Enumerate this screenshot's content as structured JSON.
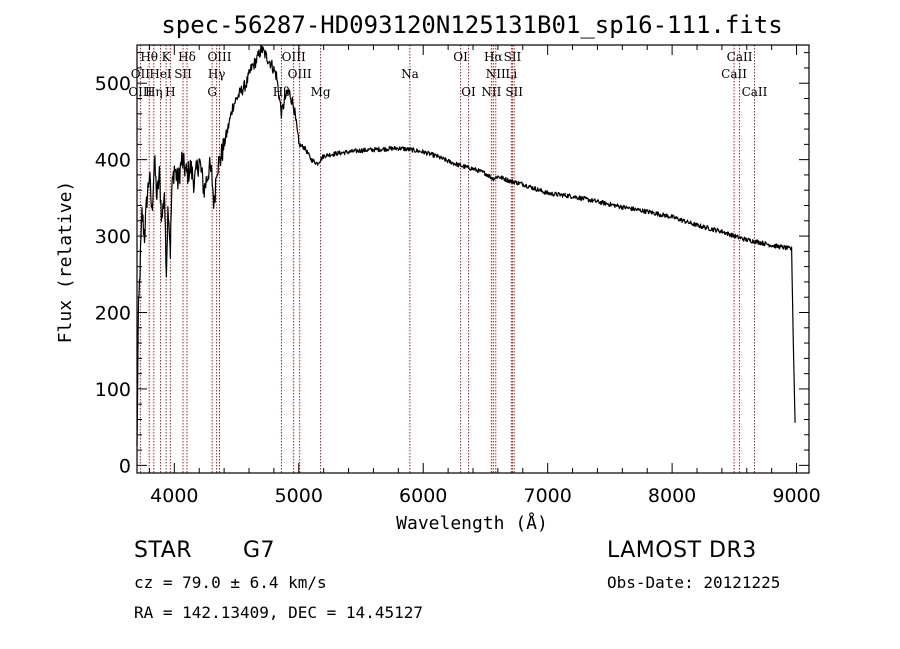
{
  "chart_data": {
    "type": "line",
    "title": "spec-56287-HD093120N125131B01_sp16-111.fits",
    "xlabel": "Wavelength (Å)",
    "ylabel": "Flux (relative)",
    "xlim": [
      3700,
      9100
    ],
    "ylim": [
      -10,
      550
    ],
    "xticks": [
      4000,
      5000,
      6000,
      7000,
      8000,
      9000
    ],
    "yticks": [
      0,
      100,
      200,
      300,
      400,
      500
    ],
    "continuum": {
      "name": "spectrum",
      "x": [
        3700,
        3710,
        3725,
        3740,
        3760,
        3780,
        3800,
        3820,
        3840,
        3860,
        3880,
        3900,
        3920,
        3934,
        3950,
        3968,
        3980,
        4000,
        4030,
        4060,
        4102,
        4130,
        4160,
        4200,
        4240,
        4280,
        4300,
        4320,
        4340,
        4370,
        4400,
        4430,
        4470,
        4500,
        4540,
        4580,
        4620,
        4660,
        4700,
        4740,
        4780,
        4820,
        4861,
        4890,
        4920,
        4960,
        5000,
        5050,
        5100,
        5150,
        5200,
        5300,
        5400,
        5500,
        5600,
        5700,
        5800,
        5900,
        6000,
        6100,
        6200,
        6300,
        6400,
        6500,
        6563,
        6600,
        6700,
        6800,
        6900,
        7000,
        7200,
        7400,
        7600,
        7800,
        8000,
        8200,
        8400,
        8500,
        8600,
        8700,
        8800,
        8900,
        8960,
        8975,
        8990
      ],
      "y": [
        20,
        190,
        260,
        330,
        300,
        350,
        380,
        330,
        400,
        350,
        380,
        320,
        360,
        250,
        345,
        280,
        360,
        390,
        370,
        400,
        380,
        390,
        370,
        400,
        360,
        390,
        380,
        340,
        390,
        400,
        420,
        440,
        470,
        480,
        490,
        500,
        520,
        530,
        545,
        535,
        525,
        510,
        460,
        480,
        490,
        470,
        420,
        415,
        400,
        395,
        405,
        408,
        410,
        412,
        413,
        414,
        415,
        413,
        410,
        405,
        398,
        392,
        388,
        382,
        375,
        378,
        372,
        368,
        362,
        356,
        352,
        345,
        338,
        332,
        325,
        314,
        306,
        300,
        295,
        292,
        288,
        285,
        283,
        150,
        40
      ]
    },
    "line_markers": [
      {
        "label": "Hθ",
        "wavelength": 3798,
        "row": 0
      },
      {
        "label": "K",
        "wavelength": 3934,
        "row": 0
      },
      {
        "label": "Hδ",
        "wavelength": 4102,
        "row": 0
      },
      {
        "label": "OIII",
        "wavelength": 4363,
        "row": 0
      },
      {
        "label": "OIII",
        "wavelength": 4959,
        "row": 0
      },
      {
        "label": "OI",
        "wavelength": 6300,
        "row": 0
      },
      {
        "label": "Hα",
        "wavelength": 6563,
        "row": 0
      },
      {
        "label": "SII",
        "wavelength": 6717,
        "row": 0
      },
      {
        "label": "CaII",
        "wavelength": 8542,
        "row": 0
      },
      {
        "label": "OII",
        "wavelength": 3727,
        "row": 1
      },
      {
        "label": "HeI",
        "wavelength": 3889,
        "row": 1
      },
      {
        "label": "SII",
        "wavelength": 4070,
        "row": 1
      },
      {
        "label": "Hγ",
        "wavelength": 4340,
        "row": 1
      },
      {
        "label": "OIII",
        "wavelength": 5007,
        "row": 1
      },
      {
        "label": "Na",
        "wavelength": 5893,
        "row": 1
      },
      {
        "label": "NII",
        "wavelength": 6583,
        "row": 1
      },
      {
        "label": "Li",
        "wavelength": 6708,
        "row": 1
      },
      {
        "label": "CaII",
        "wavelength": 8498,
        "row": 1
      },
      {
        "label": "OIII",
        "wavelength": 3727,
        "row": 2
      },
      {
        "label": "Hη",
        "wavelength": 3835,
        "row": 2
      },
      {
        "label": "H",
        "wavelength": 3968,
        "row": 2
      },
      {
        "label": "G",
        "wavelength": 4304,
        "row": 2
      },
      {
        "label": "Hβ",
        "wavelength": 4861,
        "row": 2
      },
      {
        "label": "Mg",
        "wavelength": 5175,
        "row": 2
      },
      {
        "label": "OI",
        "wavelength": 6364,
        "row": 2
      },
      {
        "label": "NII",
        "wavelength": 6548,
        "row": 2
      },
      {
        "label": "SII",
        "wavelength": 6731,
        "row": 2
      },
      {
        "label": "CaII",
        "wavelength": 8662,
        "row": 2
      }
    ],
    "marker_lines": [
      3727,
      3798,
      3835,
      3889,
      3934,
      3968,
      4070,
      4102,
      4304,
      4340,
      4363,
      4861,
      4959,
      5007,
      5175,
      5893,
      6300,
      6364,
      6548,
      6563,
      6583,
      6708,
      6717,
      6731,
      8498,
      8542,
      8662
    ]
  },
  "info": {
    "object_type": "STAR",
    "subclass": "G7",
    "survey": "LAMOST DR3",
    "redshift": "cz = 79.0 ± 6.4 km/s",
    "obs_date": "Obs-Date: 20121225",
    "coords": "RA = 142.13409, DEC =  14.45127"
  },
  "colors": {
    "axes": "#000000",
    "spectrum": "#000000",
    "marker_line": "#b22222"
  }
}
